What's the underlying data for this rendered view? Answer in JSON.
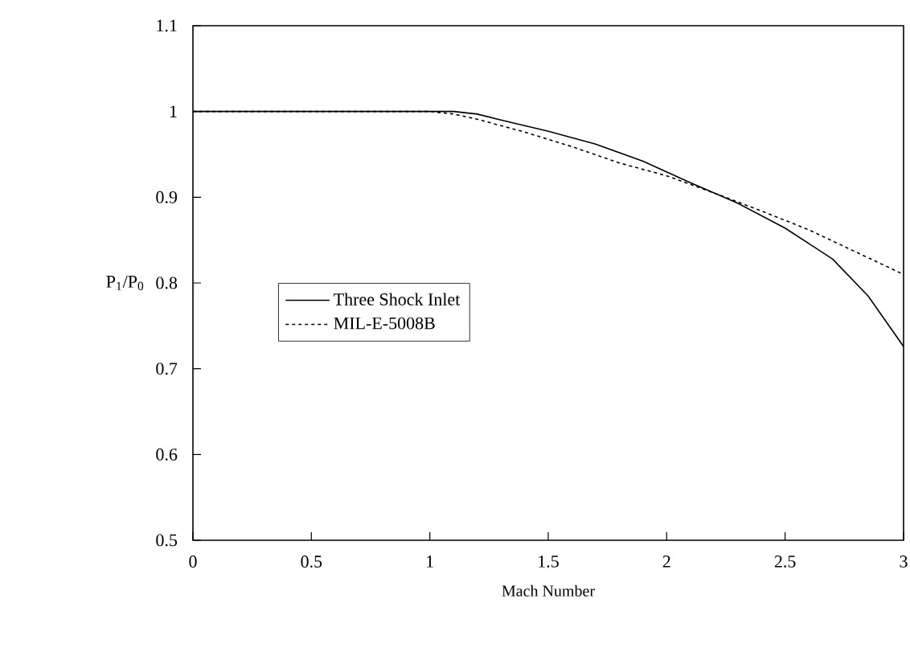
{
  "chart_data": {
    "type": "line",
    "xlabel": "Mach Number",
    "ylabel": "P$_{1}$/P$_{0}$",
    "xlim": [
      0,
      3
    ],
    "ylim": [
      0.5,
      1.1
    ],
    "xticks": [
      0,
      0.5,
      1,
      1.5,
      2,
      2.5,
      3
    ],
    "yticks": [
      0.5,
      0.6,
      0.7,
      0.8,
      0.9,
      1,
      1.1
    ],
    "grid": false,
    "legend": "left",
    "marker": "none",
    "series": [
      {
        "name": "Three Shock Inlet",
        "color": "#000000",
        "line_style": "solid",
        "x": [
          0,
          0.5,
          1,
          1.1,
          1.2,
          1.3,
          1.5,
          1.7,
          1.9,
          2.1,
          2.3,
          2.5,
          2.7,
          2.85,
          3
        ],
        "values": [
          1,
          1,
          1,
          1,
          0.997,
          0.99,
          0.977,
          0.962,
          0.942,
          0.917,
          0.893,
          0.864,
          0.828,
          0.785,
          0.726
        ]
      },
      {
        "name": "MIL-E-5008B",
        "color": "#000000",
        "line_style": "dashed",
        "x": [
          0,
          0.5,
          1,
          1.1,
          1.2,
          1.4,
          1.6,
          1.8,
          2,
          2.2,
          2.4,
          2.6,
          2.8,
          3
        ],
        "values": [
          1,
          1,
          1,
          0.997,
          0.991,
          0.976,
          0.959,
          0.94,
          0.925,
          0.905,
          0.884,
          0.862,
          0.836,
          0.81
        ]
      }
    ]
  }
}
